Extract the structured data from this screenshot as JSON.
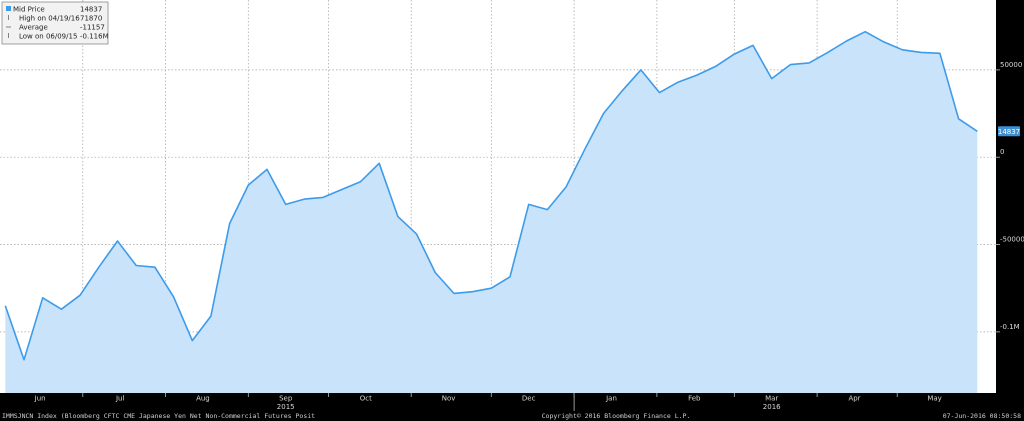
{
  "chart_data": {
    "type": "area",
    "x": [
      "2015-06-02",
      "2015-06-09",
      "2015-06-16",
      "2015-06-23",
      "2015-06-30",
      "2015-07-07",
      "2015-07-14",
      "2015-07-21",
      "2015-07-28",
      "2015-08-04",
      "2015-08-11",
      "2015-08-18",
      "2015-08-25",
      "2015-09-01",
      "2015-09-08",
      "2015-09-15",
      "2015-09-22",
      "2015-09-29",
      "2015-10-06",
      "2015-10-13",
      "2015-10-20",
      "2015-10-27",
      "2015-11-03",
      "2015-11-10",
      "2015-11-17",
      "2015-11-24",
      "2015-12-01",
      "2015-12-08",
      "2015-12-15",
      "2015-12-22",
      "2015-12-29",
      "2016-01-05",
      "2016-01-12",
      "2016-01-19",
      "2016-01-26",
      "2016-02-02",
      "2016-02-09",
      "2016-02-16",
      "2016-02-23",
      "2016-03-01",
      "2016-03-08",
      "2016-03-15",
      "2016-03-22",
      "2016-03-29",
      "2016-04-05",
      "2016-04-12",
      "2016-04-19",
      "2016-04-26",
      "2016-05-03",
      "2016-05-10",
      "2016-05-17",
      "2016-05-24",
      "2016-05-31"
    ],
    "series": [
      {
        "name": "Mid Price",
        "values": [
          -85000,
          -116000,
          -80500,
          -87000,
          -79000,
          -63000,
          -48000,
          -62000,
          -63000,
          -80000,
          -105000,
          -91000,
          -38000,
          -16000,
          -7000,
          -27000,
          -24000,
          -23000,
          -18500,
          -14000,
          -3500,
          -34000,
          -44000,
          -66000,
          -78000,
          -77000,
          -75000,
          -68500,
          -27000,
          -30000,
          -17000,
          4500,
          25000,
          38000,
          50000,
          37000,
          43000,
          47000,
          52000,
          59000,
          64000,
          45000,
          53000,
          54000,
          60000,
          66500,
          71870,
          66000,
          61500,
          60000,
          59500,
          22000,
          14837
        ]
      }
    ],
    "y_ticks": [
      50000,
      0,
      -50000,
      -100000
    ],
    "y_tick_labels": [
      "50000",
      "0",
      "-50000",
      "-0.1M"
    ],
    "ylim": [
      -135000,
      90000
    ],
    "x_ticks": [
      {
        "label": "Jun",
        "date": "2015-06-15"
      },
      {
        "label": "Jul",
        "date": "2015-07-15"
      },
      {
        "label": "Aug",
        "date": "2015-08-15"
      },
      {
        "label": "Sep",
        "date": "2015-09-15"
      },
      {
        "label": "Oct",
        "date": "2015-10-15"
      },
      {
        "label": "Nov",
        "date": "2015-11-15"
      },
      {
        "label": "Dec",
        "date": "2015-12-15"
      },
      {
        "label": "Jan",
        "date": "2016-01-15"
      },
      {
        "label": "Feb",
        "date": "2016-02-15"
      },
      {
        "label": "Mar",
        "date": "2016-03-15"
      },
      {
        "label": "Apr",
        "date": "2016-04-15"
      },
      {
        "label": "May",
        "date": "2016-05-15"
      }
    ],
    "month_boundaries": [
      "2015-07-01",
      "2015-08-01",
      "2015-09-01",
      "2015-10-01",
      "2015-11-01",
      "2015-12-01",
      "2016-01-01",
      "2016-02-01",
      "2016-03-01",
      "2016-04-01",
      "2016-05-01"
    ],
    "year_labels": [
      {
        "label": "2015",
        "date": "2015-09-15"
      },
      {
        "label": "2016",
        "date": "2016-03-15"
      }
    ],
    "x_range": [
      "2015-05-31",
      "2016-06-07"
    ],
    "last_value_label": "14837",
    "grid": true,
    "legend": {
      "position": "top-left",
      "rows": [
        {
          "label": "Mid Price",
          "value": "14837"
        },
        {
          "label": "High on 04/19/16",
          "value": "71870"
        },
        {
          "label": "Average",
          "value": "-11157"
        },
        {
          "label": "Low on 06/09/15",
          "value": "-0.116M"
        }
      ]
    },
    "colors": {
      "line": "#3d9be9",
      "area": "#c9e3fb",
      "plot_bg": "#ffffff",
      "grid": "#9a9a9a",
      "frame": "#000000",
      "label_box": "#3d8fd6"
    }
  },
  "footer": {
    "left": "IMMSJNCN Index (Bloomberg CFTC CME Japanese Yen Net Non-Commercial Futures Posit",
    "center": "Copyright© 2016 Bloomberg Finance L.P.",
    "right": "07-Jun-2016 08:50:58"
  }
}
